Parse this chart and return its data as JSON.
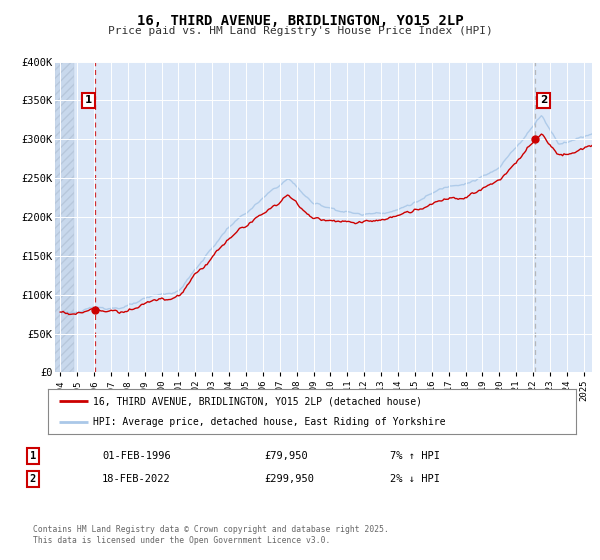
{
  "title": "16, THIRD AVENUE, BRIDLINGTON, YO15 2LP",
  "subtitle": "Price paid vs. HM Land Registry's House Price Index (HPI)",
  "plot_bg_color": "#dce8f8",
  "hatch_color": "#c8d8ec",
  "red_color": "#cc0000",
  "blue_color": "#aac8e8",
  "legend_label_red": "16, THIRD AVENUE, BRIDLINGTON, YO15 2LP (detached house)",
  "legend_label_blue": "HPI: Average price, detached house, East Riding of Yorkshire",
  "sale1_year": 1996.083,
  "sale1_price": 79950,
  "sale2_year": 2022.125,
  "sale2_price": 299950,
  "annotation1_text": "01-FEB-1996",
  "annotation1_price": "£79,950",
  "annotation1_hpi": "7% ↑ HPI",
  "annotation2_text": "18-FEB-2022",
  "annotation2_price": "£299,950",
  "annotation2_hpi": "2% ↓ HPI",
  "footer": "Contains HM Land Registry data © Crown copyright and database right 2025.\nThis data is licensed under the Open Government Licence v3.0.",
  "ylim": [
    0,
    400000
  ],
  "xlim_start": 1993.7,
  "xlim_end": 2025.5,
  "hatch_end": 1994.8
}
